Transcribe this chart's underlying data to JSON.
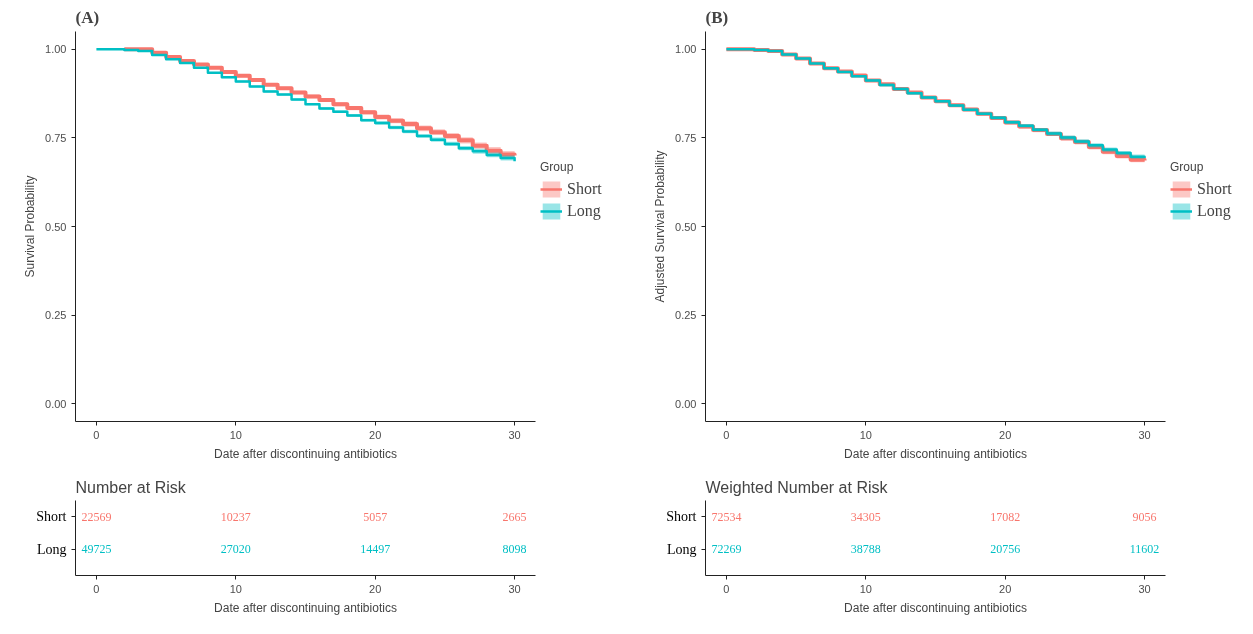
{
  "chart_data": [
    {
      "type": "step",
      "title": "(A)",
      "xlabel": "Date after discontinuing antibiotics",
      "ylabel": "Survival Probability",
      "legend_title": "Group",
      "legend": "right",
      "x": [
        0,
        1,
        2,
        3,
        4,
        5,
        6,
        7,
        8,
        9,
        10,
        11,
        12,
        13,
        14,
        15,
        16,
        17,
        18,
        19,
        20,
        21,
        22,
        23,
        24,
        25,
        26,
        27,
        28,
        29,
        30
      ],
      "xlim": [
        -1.5,
        31.5
      ],
      "ylim": [
        -0.05,
        1.05
      ],
      "xticks": [
        0,
        10,
        20,
        30
      ],
      "yticks": [
        {
          "value": 0,
          "label": "0.00"
        },
        {
          "value": 0.25,
          "label": "0.25"
        },
        {
          "value": 0.5,
          "label": "0.50"
        },
        {
          "value": 0.75,
          "label": "0.75"
        },
        {
          "value": 1,
          "label": "1.00"
        }
      ],
      "series": [
        {
          "name": "Short",
          "color": "#f8766d",
          "values": [
            null,
            null,
            1.0,
            1.0,
            0.99,
            0.978,
            0.967,
            0.957,
            0.948,
            0.936,
            0.925,
            0.913,
            0.9,
            0.89,
            0.878,
            0.867,
            0.857,
            0.845,
            0.834,
            0.822,
            0.809,
            0.798,
            0.789,
            0.777,
            0.766,
            0.755,
            0.743,
            0.728,
            0.714,
            0.703,
            0.7
          ],
          "lower": [
            null,
            null,
            1.0,
            0.999,
            0.988,
            0.976,
            0.964,
            0.954,
            0.945,
            0.933,
            0.921,
            0.909,
            0.896,
            0.886,
            0.873,
            0.862,
            0.852,
            0.839,
            0.828,
            0.816,
            0.802,
            0.791,
            0.781,
            0.769,
            0.758,
            0.746,
            0.734,
            0.719,
            0.704,
            0.693,
            0.69
          ],
          "upper": [
            null,
            null,
            1.0,
            1.0,
            0.992,
            0.98,
            0.97,
            0.96,
            0.951,
            0.939,
            0.929,
            0.917,
            0.904,
            0.894,
            0.883,
            0.872,
            0.862,
            0.851,
            0.84,
            0.828,
            0.816,
            0.805,
            0.797,
            0.785,
            0.774,
            0.764,
            0.752,
            0.737,
            0.724,
            0.713,
            0.71
          ]
        },
        {
          "name": "Long",
          "color": "#00bfc4",
          "values": [
            1.0,
            1.0,
            0.998,
            0.995,
            0.984,
            0.972,
            0.961,
            0.948,
            0.934,
            0.921,
            0.909,
            0.895,
            0.881,
            0.872,
            0.858,
            0.845,
            0.833,
            0.824,
            0.813,
            0.8,
            0.792,
            0.779,
            0.768,
            0.755,
            0.745,
            0.733,
            0.721,
            0.712,
            0.702,
            0.693,
            0.684
          ],
          "lower": [
            1.0,
            1.0,
            0.997,
            0.994,
            0.982,
            0.97,
            0.959,
            0.946,
            0.932,
            0.918,
            0.906,
            0.892,
            0.878,
            0.869,
            0.855,
            0.842,
            0.829,
            0.82,
            0.809,
            0.796,
            0.787,
            0.774,
            0.763,
            0.75,
            0.739,
            0.727,
            0.715,
            0.705,
            0.695,
            0.686,
            0.677
          ],
          "upper": [
            1.0,
            1.0,
            0.999,
            0.996,
            0.986,
            0.974,
            0.963,
            0.95,
            0.936,
            0.924,
            0.912,
            0.898,
            0.884,
            0.875,
            0.861,
            0.848,
            0.837,
            0.828,
            0.817,
            0.804,
            0.797,
            0.784,
            0.773,
            0.76,
            0.751,
            0.739,
            0.727,
            0.719,
            0.709,
            0.7,
            0.691
          ]
        }
      ]
    },
    {
      "type": "heatmap",
      "title": "Number at Risk",
      "xlabel": "Date after discontinuing antibiotics",
      "categories": [
        "0",
        "10",
        "20",
        "30"
      ],
      "y_categories": [
        "Short",
        "Long"
      ],
      "colors": [
        "#f8766d",
        "#00bfc4"
      ],
      "data_labels": true,
      "cells": [
        [
          22569,
          10237,
          5057,
          2665
        ],
        [
          49725,
          27020,
          14497,
          8098
        ]
      ]
    },
    {
      "type": "step",
      "title": "(B)",
      "xlabel": "Date after discontinuing antibiotics",
      "ylabel": "Adjusted Survival Probability",
      "legend_title": "Group",
      "legend": "right",
      "x": [
        0,
        1,
        2,
        3,
        4,
        5,
        6,
        7,
        8,
        9,
        10,
        11,
        12,
        13,
        14,
        15,
        16,
        17,
        18,
        19,
        20,
        21,
        22,
        23,
        24,
        25,
        26,
        27,
        28,
        29,
        30
      ],
      "xlim": [
        -1.5,
        31.5
      ],
      "ylim": [
        -0.05,
        1.05
      ],
      "xticks": [
        0,
        10,
        20,
        30
      ],
      "yticks": [
        {
          "value": 0,
          "label": "0.00"
        },
        {
          "value": 0.25,
          "label": "0.25"
        },
        {
          "value": 0.5,
          "label": "0.50"
        },
        {
          "value": 0.75,
          "label": "0.75"
        },
        {
          "value": 1,
          "label": "1.00"
        }
      ],
      "series": [
        {
          "name": "Short",
          "color": "#f8766d",
          "values": [
            1.0,
            1.0,
            0.998,
            0.995,
            0.985,
            0.974,
            0.96,
            0.946,
            0.937,
            0.926,
            0.912,
            0.901,
            0.888,
            0.878,
            0.864,
            0.853,
            0.842,
            0.83,
            0.818,
            0.806,
            0.793,
            0.782,
            0.772,
            0.761,
            0.749,
            0.738,
            0.724,
            0.711,
            0.699,
            0.688,
            0.686
          ],
          "lower": [
            1.0,
            1.0,
            0.997,
            0.994,
            0.983,
            0.972,
            0.958,
            0.943,
            0.934,
            0.923,
            0.909,
            0.897,
            0.884,
            0.874,
            0.86,
            0.849,
            0.837,
            0.825,
            0.813,
            0.801,
            0.788,
            0.776,
            0.766,
            0.755,
            0.742,
            0.731,
            0.717,
            0.704,
            0.692,
            0.681,
            0.679
          ],
          "upper": [
            1.0,
            1.0,
            0.999,
            0.996,
            0.987,
            0.976,
            0.962,
            0.949,
            0.94,
            0.929,
            0.915,
            0.905,
            0.892,
            0.882,
            0.868,
            0.857,
            0.847,
            0.835,
            0.823,
            0.811,
            0.798,
            0.788,
            0.778,
            0.767,
            0.756,
            0.745,
            0.731,
            0.718,
            0.706,
            0.695,
            0.693
          ]
        },
        {
          "name": "Long",
          "color": "#00bfc4",
          "values": [
            1.0,
            1.0,
            0.998,
            0.995,
            0.985,
            0.974,
            0.96,
            0.946,
            0.936,
            0.924,
            0.912,
            0.899,
            0.888,
            0.876,
            0.864,
            0.853,
            0.841,
            0.829,
            0.818,
            0.807,
            0.794,
            0.784,
            0.773,
            0.762,
            0.751,
            0.74,
            0.729,
            0.717,
            0.707,
            0.697,
            0.693
          ],
          "lower": [
            1.0,
            1.0,
            0.997,
            0.994,
            0.983,
            0.972,
            0.958,
            0.943,
            0.933,
            0.921,
            0.909,
            0.895,
            0.884,
            0.872,
            0.86,
            0.849,
            0.837,
            0.825,
            0.814,
            0.802,
            0.789,
            0.779,
            0.768,
            0.756,
            0.745,
            0.734,
            0.723,
            0.711,
            0.701,
            0.691,
            0.687
          ],
          "upper": [
            1.0,
            1.0,
            0.999,
            0.996,
            0.987,
            0.976,
            0.962,
            0.949,
            0.939,
            0.927,
            0.915,
            0.903,
            0.892,
            0.88,
            0.868,
            0.857,
            0.845,
            0.833,
            0.822,
            0.812,
            0.799,
            0.789,
            0.778,
            0.768,
            0.757,
            0.746,
            0.735,
            0.723,
            0.713,
            0.703,
            0.699
          ]
        }
      ]
    },
    {
      "type": "heatmap",
      "title": "Weighted Number at Risk",
      "xlabel": "Date after discontinuing antibiotics",
      "categories": [
        "0",
        "10",
        "20",
        "30"
      ],
      "y_categories": [
        "Short",
        "Long"
      ],
      "colors": [
        "#f8766d",
        "#00bfc4"
      ],
      "data_labels": true,
      "cells": [
        [
          72534,
          34305,
          17082,
          9056
        ],
        [
          72269,
          38788,
          20756,
          11602
        ]
      ]
    }
  ]
}
